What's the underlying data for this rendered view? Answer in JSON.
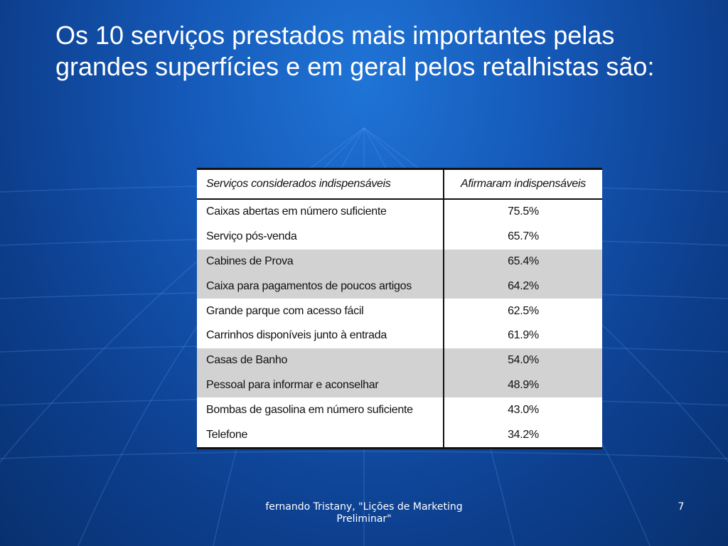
{
  "slide": {
    "title": "Os 10 serviços prestados mais importantes pelas grandes superfícies e em geral pelos retalhistas são:",
    "table": {
      "headers": [
        "Serviços considerados indispensáveis",
        "Afirmaram indispensáveis"
      ],
      "rows": [
        {
          "service": "Caixas abertas em número suficiente",
          "value": "75.5%"
        },
        {
          "service": "Serviço pós-venda",
          "value": "65.7%"
        },
        {
          "service": "Cabines de Prova",
          "value": "65.4%"
        },
        {
          "service": "Caixa para pagamentos de poucos artigos",
          "value": "64.2%"
        },
        {
          "service": "Grande parque com acesso fácil",
          "value": "62.5%"
        },
        {
          "service": "Carrinhos disponíveis junto à entrada",
          "value": "61.9%"
        },
        {
          "service": "Casas de Banho",
          "value": "54.0%"
        },
        {
          "service": "Pessoal para informar e aconselhar",
          "value": "48.9%"
        },
        {
          "service": "Bombas de gasolina em número suficiente",
          "value": "43.0%"
        },
        {
          "service": "Telefone",
          "value": "34.2%"
        }
      ],
      "stripe_colors": [
        "#ffffff",
        "#d2d2d2"
      ]
    },
    "footer": {
      "line1": "fernando Tristany, \"Lições de Marketing",
      "line2": "Preliminar\""
    },
    "page_number": "7",
    "colors": {
      "background": "#1559b8",
      "text": "#ffffff"
    }
  }
}
